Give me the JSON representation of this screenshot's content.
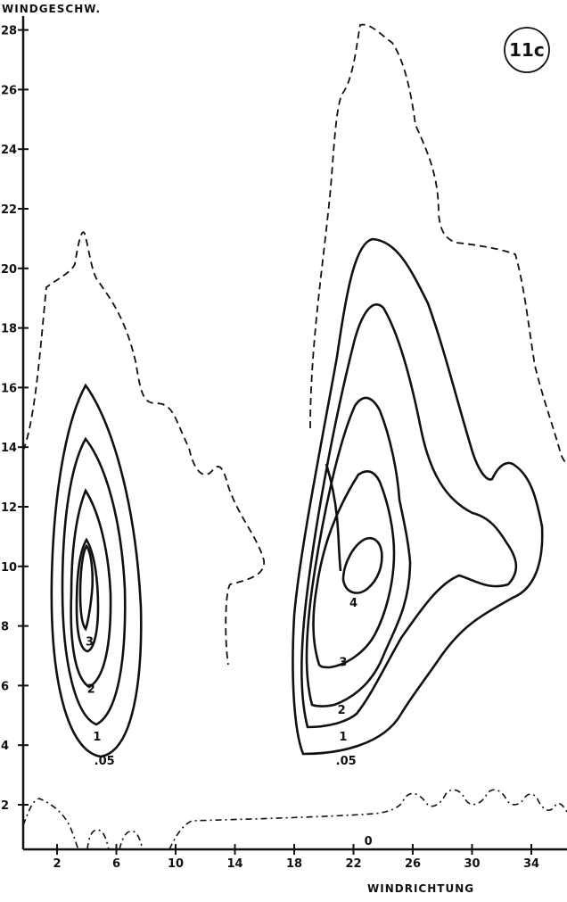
{
  "chart_data": {
    "type": "contour",
    "figure_label": "11c",
    "xlabel": "WINDRICHTUNG",
    "ylabel": "WINDGESCHW.",
    "x_ticks": [
      "2",
      "6",
      "10",
      "14",
      "18",
      "22",
      "26",
      "30",
      "34"
    ],
    "y_ticks": [
      "2",
      "4",
      "6",
      "8",
      "10",
      "12",
      "14",
      "16",
      "18",
      "20",
      "22",
      "24",
      "26",
      "28"
    ],
    "contour_levels": [
      "0",
      ".05",
      "1",
      "2",
      "3",
      "4"
    ],
    "contour_labels": [
      {
        "text": ".05",
        "x": 5.2,
        "y": 3.5
      },
      {
        "text": "1",
        "x": 4.7,
        "y": 4.3
      },
      {
        "text": "2",
        "x": 4.3,
        "y": 5.9
      },
      {
        "text": "3",
        "x": 4.2,
        "y": 7.5
      },
      {
        "text": ".05",
        "x": 21.5,
        "y": 3.5
      },
      {
        "text": "1",
        "x": 21.3,
        "y": 4.3
      },
      {
        "text": "2",
        "x": 21.2,
        "y": 5.2
      },
      {
        "text": "3",
        "x": 21.3,
        "y": 6.8
      },
      {
        "text": "4",
        "x": 22.0,
        "y": 8.8
      },
      {
        "text": "0",
        "x": 23.0,
        "y": 0.8
      }
    ]
  }
}
